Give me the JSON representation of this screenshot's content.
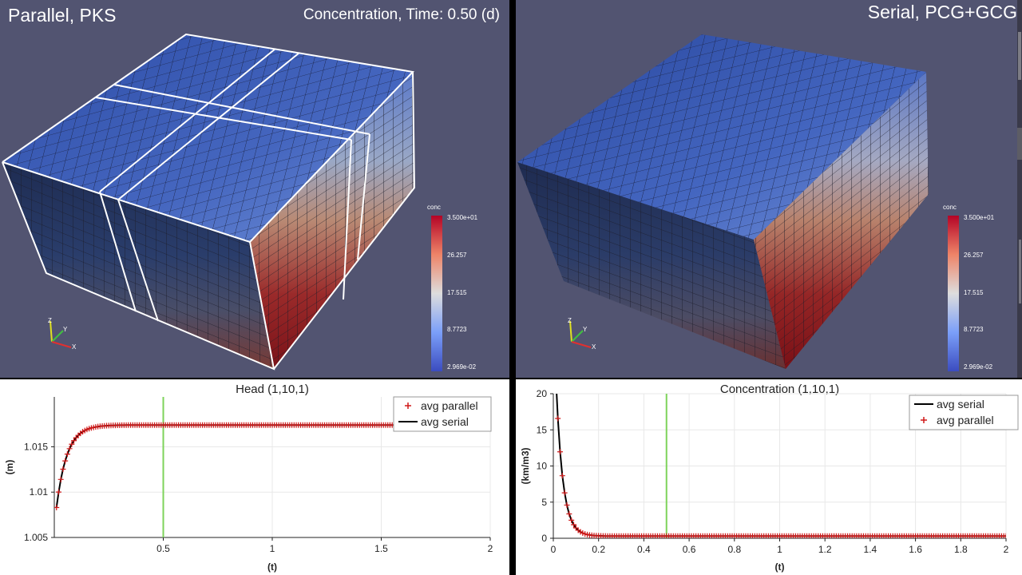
{
  "left_view": {
    "title": "Parallel, PKS",
    "subtitle": "Concentration, Time: 0.50 (d)",
    "colorbar": {
      "label": "conc",
      "ticks": [
        "3.500e+01",
        "26.257",
        "17.515",
        "8.7723",
        "2.969e-02"
      ]
    },
    "axes_triad": {
      "z": "Z",
      "y": "Y",
      "x": "X"
    }
  },
  "right_view": {
    "title": "Serial, PCG+GCG",
    "colorbar": {
      "label": "conc",
      "ticks": [
        "3.500e+01",
        "26.257",
        "17.515",
        "8.7723",
        "2.969e-02"
      ]
    },
    "axes_triad": {
      "z": "Z",
      "y": "Y",
      "x": "X"
    }
  },
  "colors": {
    "view_bg": "#525471",
    "top_blue": "#3f5fb8",
    "bottom_red": "#8e1620",
    "serial_line": "#000000",
    "parallel_marker": "#d01818",
    "time_marker": "#7ed35b"
  },
  "chart_data": [
    {
      "type": "line",
      "title": "Head (1,10,1)",
      "xlabel": "(t)",
      "ylabel": "(m)",
      "xlim": [
        0,
        2
      ],
      "ylim": [
        1.005,
        1.0205
      ],
      "xticks": [
        0.5,
        1,
        1.5,
        2
      ],
      "xtick_labels": [
        "0.5",
        "1",
        "1.5",
        "2"
      ],
      "yticks": [
        1.005,
        1.01,
        1.015
      ],
      "ytick_labels": [
        "1.005",
        "1.01",
        "1.015"
      ],
      "legend_position": "top-right",
      "legend": [
        {
          "label": "avg parallel",
          "style": "marker"
        },
        {
          "label": "avg serial",
          "style": "line"
        }
      ],
      "time_marker": 0.5,
      "series": [
        {
          "name": "avg parallel",
          "style": "marker",
          "x_start": 0.01,
          "x_end": 1.6,
          "step": 0.01,
          "model": "saturating",
          "y0": 1.0083,
          "y_inf": 1.0174,
          "tau": 0.048
        },
        {
          "name": "avg serial",
          "style": "line",
          "x_start": 0.01,
          "x_end": 1.6,
          "step": 0.01,
          "model": "saturating",
          "y0": 1.0083,
          "y_inf": 1.0174,
          "tau": 0.048
        }
      ]
    },
    {
      "type": "line",
      "title": "Concentration (1,10,1)",
      "xlabel": "(t)",
      "ylabel": "(km/m3)",
      "xlim": [
        0,
        2
      ],
      "ylim": [
        0,
        20
      ],
      "xticks": [
        0,
        0.2,
        0.4,
        0.6,
        0.8,
        1,
        1.2,
        1.4,
        1.6,
        1.8,
        2
      ],
      "xtick_labels": [
        "0",
        "0.2",
        "0.4",
        "0.6",
        "0.8",
        "1",
        "1.2",
        "1.4",
        "1.6",
        "1.8",
        "2"
      ],
      "yticks": [
        0,
        5,
        10,
        15,
        20
      ],
      "ytick_labels": [
        "0",
        "5",
        "10",
        "15",
        "20"
      ],
      "legend_position": "top-right",
      "legend": [
        {
          "label": "avg serial",
          "style": "line"
        },
        {
          "label": "avg parallel",
          "style": "marker"
        }
      ],
      "time_marker": 0.5,
      "series": [
        {
          "name": "avg serial",
          "style": "line",
          "x_start": 0.01,
          "x_end": 2,
          "step": 0.01,
          "model": "decay",
          "y0": 32.0,
          "y_inf": 0.3,
          "tau": 0.03
        },
        {
          "name": "avg parallel",
          "style": "marker",
          "x_start": 0.01,
          "x_end": 2,
          "step": 0.01,
          "model": "decay",
          "y0": 32.0,
          "y_inf": 0.3,
          "tau": 0.03
        }
      ]
    }
  ]
}
